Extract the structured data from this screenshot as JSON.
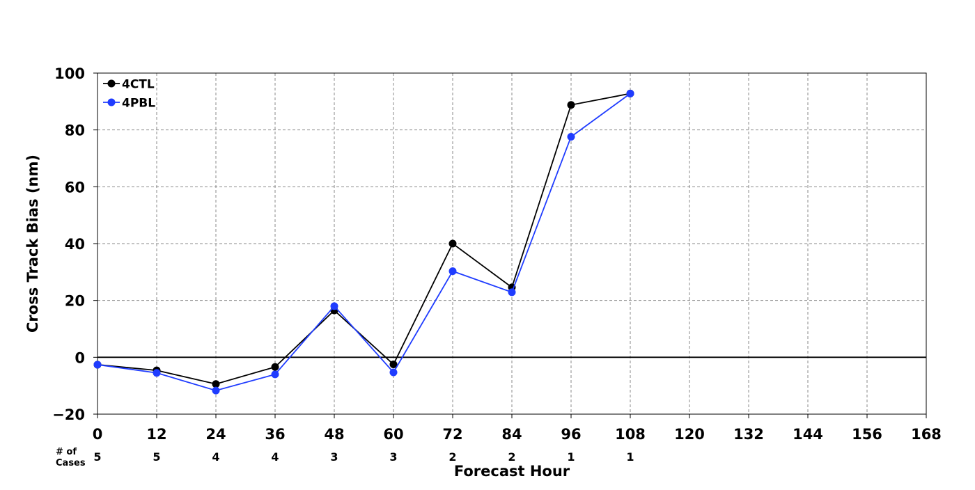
{
  "chart_data": {
    "type": "line",
    "title": "",
    "xlabel": "Forecast Hour",
    "ylabel": "Cross Track Bias (nm)",
    "x": [
      0,
      12,
      24,
      36,
      48,
      60,
      72,
      84,
      96,
      108
    ],
    "xticks": [
      0,
      12,
      24,
      36,
      48,
      60,
      72,
      84,
      96,
      108,
      120,
      132,
      144,
      156,
      168
    ],
    "xtick_labels": [
      "0",
      "12",
      "24",
      "36",
      "48",
      "60",
      "72",
      "84",
      "96",
      "108",
      "120",
      "132",
      "144",
      "156",
      "168"
    ],
    "yticks": [
      -20,
      0,
      20,
      40,
      60,
      80,
      100
    ],
    "ytick_labels": [
      "−20",
      "0",
      "20",
      "40",
      "60",
      "80",
      "100"
    ],
    "xlim": [
      0,
      168
    ],
    "ylim": [
      -20,
      100
    ],
    "grid": true,
    "zero_line": true,
    "legend_position": "top-left",
    "series": [
      {
        "name": "4CTL",
        "color": "#000000",
        "values": [
          -2.6,
          -4.6,
          -9.4,
          -3.4,
          16.5,
          -2.5,
          40.0,
          24.6,
          88.8,
          92.8
        ]
      },
      {
        "name": "4PBL",
        "color": "#1f3cff",
        "values": [
          -2.6,
          -5.5,
          -11.7,
          -6.0,
          18.0,
          -5.3,
          30.3,
          22.9,
          77.6,
          92.8
        ]
      }
    ],
    "cases_label": "# of\nCases",
    "cases_label_lines": [
      "# of",
      "Cases"
    ],
    "cases": [
      {
        "hour": 0,
        "count": "5"
      },
      {
        "hour": 12,
        "count": "5"
      },
      {
        "hour": 24,
        "count": "4"
      },
      {
        "hour": 36,
        "count": "4"
      },
      {
        "hour": 48,
        "count": "3"
      },
      {
        "hour": 60,
        "count": "3"
      },
      {
        "hour": 72,
        "count": "2"
      },
      {
        "hour": 84,
        "count": "2"
      },
      {
        "hour": 96,
        "count": "1"
      },
      {
        "hour": 108,
        "count": "1"
      }
    ]
  }
}
